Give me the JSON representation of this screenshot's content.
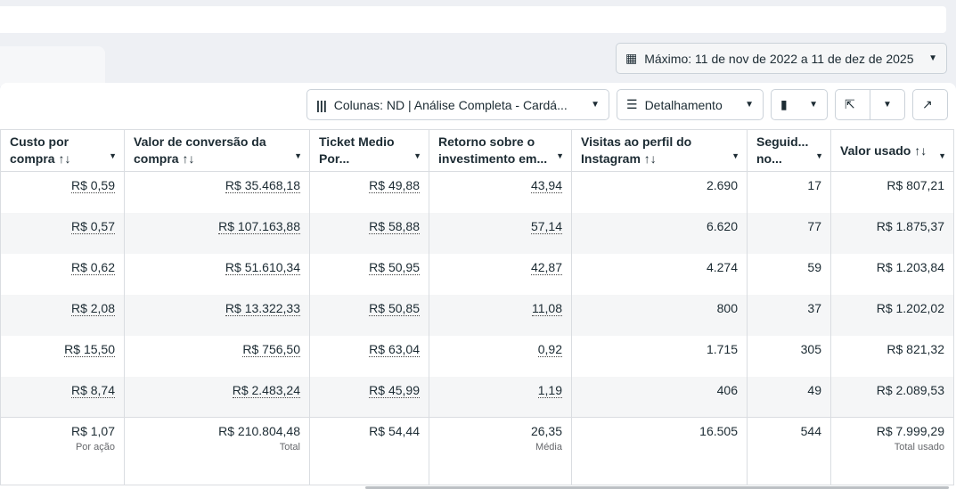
{
  "date_range": {
    "label": "Máximo: 11 de nov de 2022 a 11 de dez de 2025",
    "icon": "calendar-icon"
  },
  "toolbar": {
    "columns": "Colunas: ND | Análise Completa - Cardá...",
    "breakdown": "Detalhamento"
  },
  "headers": [
    {
      "l1": "Custo por",
      "l2": "compra ↑↓"
    },
    {
      "l1": "Valor de conversão da",
      "l2": "compra ↑↓"
    },
    {
      "l1": "Ticket Medio",
      "l2": "Por..."
    },
    {
      "l1": "Retorno sobre o",
      "l2": "investimento em..."
    },
    {
      "l1": "Visitas ao perfil do",
      "l2": "Instagram ↑↓"
    },
    {
      "l1": "Seguid...",
      "l2": "no..."
    },
    {
      "l1": "Valor usado ↑↓",
      "l2": ""
    }
  ],
  "rows": [
    [
      "R$ 0,59",
      "R$ 35.468,18",
      "R$ 49,88",
      "43,94",
      "2.690",
      "17",
      "R$ 807,21"
    ],
    [
      "R$ 0,57",
      "R$ 107.163,88",
      "R$ 58,88",
      "57,14",
      "6.620",
      "77",
      "R$ 1.875,37"
    ],
    [
      "R$ 0,62",
      "R$ 51.610,34",
      "R$ 50,95",
      "42,87",
      "4.274",
      "59",
      "R$ 1.203,84"
    ],
    [
      "R$ 2,08",
      "R$ 13.322,33",
      "R$ 50,85",
      "11,08",
      "800",
      "37",
      "R$ 1.202,02"
    ],
    [
      "R$ 15,50",
      "R$ 756,50",
      "R$ 63,04",
      "0,92",
      "1.715",
      "305",
      "R$ 821,32"
    ],
    [
      "R$ 8,74",
      "R$ 2.483,24",
      "R$ 45,99",
      "1,19",
      "406",
      "49",
      "R$ 2.089,53"
    ]
  ],
  "totals": [
    {
      "v": "R$ 1,07",
      "s": "Por ação"
    },
    {
      "v": "R$ 210.804,48",
      "s": "Total"
    },
    {
      "v": "R$ 54,44",
      "s": ""
    },
    {
      "v": "26,35",
      "s": "Média"
    },
    {
      "v": "16.505",
      "s": ""
    },
    {
      "v": "544",
      "s": ""
    },
    {
      "v": "R$ 7.999,29",
      "s": "Total usado"
    }
  ]
}
